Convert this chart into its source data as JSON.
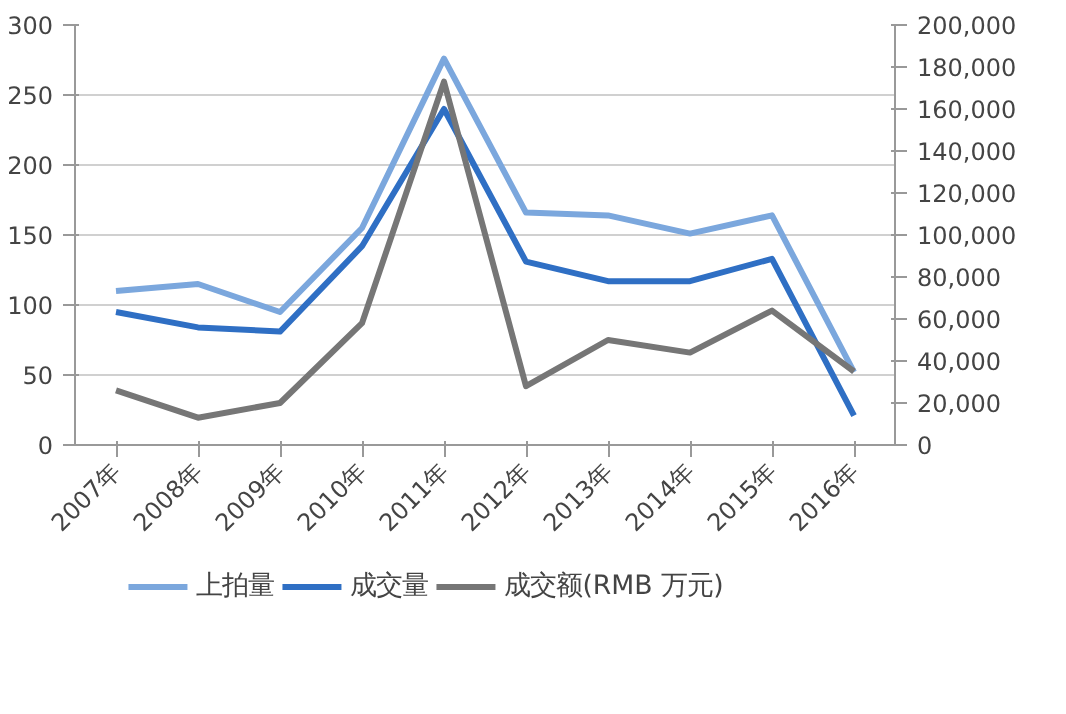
{
  "chart_data": {
    "type": "line",
    "categories": [
      "2007年",
      "2008年",
      "2009年",
      "2010年",
      "2011年",
      "2012年",
      "2013年",
      "2014年",
      "2015年",
      "2016年"
    ],
    "series": [
      {
        "name": "上拍量",
        "color": "#7ba7dd",
        "values": [
          110,
          115,
          95,
          155,
          276,
          166,
          164,
          151,
          164,
          52
        ]
      },
      {
        "name": "成交量",
        "color": "#2f6fc4",
        "values": [
          95,
          84,
          81,
          142,
          240,
          131,
          117,
          117,
          133,
          21
        ]
      },
      {
        "name": "成交额(RMB 万元)",
        "color": "#767676",
        "axis": "y2",
        "values": [
          26000,
          13000,
          20000,
          58000,
          173000,
          28000,
          50000,
          44000,
          64000,
          35000
        ]
      }
    ],
    "ylim": [
      0,
      300
    ],
    "yticks": [
      0,
      50,
      100,
      150,
      200,
      250,
      300
    ],
    "y2lim": [
      0,
      200000
    ],
    "y2ticks": [
      {
        "value": 0,
        "label": "0"
      },
      {
        "value": 20000,
        "label": "20,000"
      },
      {
        "value": 40000,
        "label": "40,000"
      },
      {
        "value": 60000,
        "label": "60,000"
      },
      {
        "value": 80000,
        "label": "80,000"
      },
      {
        "value": 100000,
        "label": "100,000"
      },
      {
        "value": 120000,
        "label": "120,000"
      },
      {
        "value": 140000,
        "label": "140,000"
      },
      {
        "value": 160000,
        "label": "160,000"
      },
      {
        "value": 180000,
        "label": "180,000"
      },
      {
        "value": 200000,
        "label": "200,000"
      }
    ],
    "grid": "y",
    "legend": "bottom",
    "marker": "none",
    "line_style": "solid"
  }
}
